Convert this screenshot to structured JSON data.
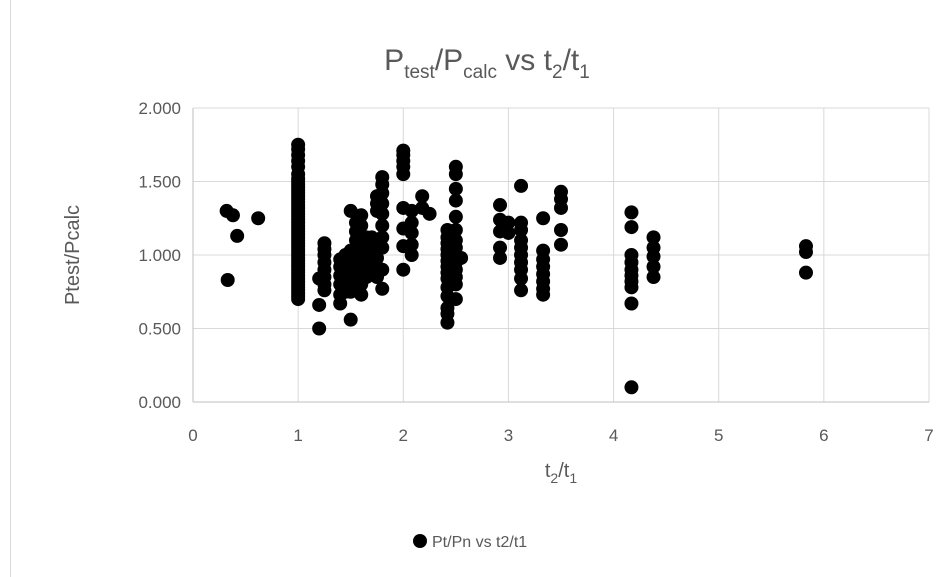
{
  "chart_data": {
    "type": "scatter",
    "title": {
      "main": "P",
      "sub1": "test",
      "mid": "/P",
      "sub2": "calc",
      "rest": " vs t",
      "sub3": "2",
      "slash": "/t",
      "sub4": "1"
    },
    "xlabel": {
      "main": "t",
      "sub1": "2",
      "mid": "/t",
      "sub2": "1"
    },
    "ylabel": "Ptest/Pcalc",
    "xlim": [
      0,
      7
    ],
    "ylim": [
      0,
      2
    ],
    "x_ticks": [
      "0",
      "1",
      "2",
      "3",
      "4",
      "5",
      "6",
      "7"
    ],
    "y_ticks": [
      "0.000",
      "0.500",
      "1.000",
      "1.500",
      "2.000"
    ],
    "grid": true,
    "legend_position": "bottom",
    "series": [
      {
        "name": "Pt/Pn vs t2/t1",
        "color": "#000000",
        "points": [
          [
            0.32,
            1.3
          ],
          [
            0.33,
            0.83
          ],
          [
            0.38,
            1.27
          ],
          [
            0.42,
            1.13
          ],
          [
            0.62,
            1.25
          ],
          [
            1.0,
            0.7
          ],
          [
            1.0,
            0.72
          ],
          [
            1.0,
            0.74
          ],
          [
            1.0,
            0.76
          ],
          [
            1.0,
            0.78
          ],
          [
            1.0,
            0.8
          ],
          [
            1.0,
            0.82
          ],
          [
            1.0,
            0.84
          ],
          [
            1.0,
            0.86
          ],
          [
            1.0,
            0.88
          ],
          [
            1.0,
            0.9
          ],
          [
            1.0,
            0.92
          ],
          [
            1.0,
            0.94
          ],
          [
            1.0,
            0.96
          ],
          [
            1.0,
            0.98
          ],
          [
            1.0,
            1.0
          ],
          [
            1.0,
            1.02
          ],
          [
            1.0,
            1.04
          ],
          [
            1.0,
            1.06
          ],
          [
            1.0,
            1.08
          ],
          [
            1.0,
            1.1
          ],
          [
            1.0,
            1.12
          ],
          [
            1.0,
            1.14
          ],
          [
            1.0,
            1.16
          ],
          [
            1.0,
            1.18
          ],
          [
            1.0,
            1.2
          ],
          [
            1.0,
            1.22
          ],
          [
            1.0,
            1.24
          ],
          [
            1.0,
            1.26
          ],
          [
            1.0,
            1.28
          ],
          [
            1.0,
            1.3
          ],
          [
            1.0,
            1.32
          ],
          [
            1.0,
            1.34
          ],
          [
            1.0,
            1.36
          ],
          [
            1.0,
            1.38
          ],
          [
            1.0,
            1.4
          ],
          [
            1.0,
            1.42
          ],
          [
            1.0,
            1.44
          ],
          [
            1.0,
            1.46
          ],
          [
            1.0,
            1.48
          ],
          [
            1.0,
            1.5
          ],
          [
            1.0,
            1.52
          ],
          [
            1.0,
            1.55
          ],
          [
            1.0,
            1.6
          ],
          [
            1.0,
            1.64
          ],
          [
            1.0,
            1.68
          ],
          [
            1.0,
            1.72
          ],
          [
            1.0,
            1.75
          ],
          [
            1.2,
            0.5
          ],
          [
            1.2,
            0.66
          ],
          [
            1.2,
            0.84
          ],
          [
            1.25,
            0.76
          ],
          [
            1.25,
            0.8
          ],
          [
            1.25,
            0.85
          ],
          [
            1.25,
            0.9
          ],
          [
            1.25,
            0.95
          ],
          [
            1.25,
            1.0
          ],
          [
            1.25,
            1.04
          ],
          [
            1.25,
            1.08
          ],
          [
            1.4,
            0.67
          ],
          [
            1.4,
            0.73
          ],
          [
            1.4,
            0.8
          ],
          [
            1.4,
            0.86
          ],
          [
            1.4,
            0.92
          ],
          [
            1.4,
            0.97
          ],
          [
            1.45,
            0.75
          ],
          [
            1.45,
            0.85
          ],
          [
            1.45,
            0.95
          ],
          [
            1.45,
            1.0
          ],
          [
            1.5,
            0.56
          ],
          [
            1.5,
            0.75
          ],
          [
            1.5,
            0.82
          ],
          [
            1.5,
            0.88
          ],
          [
            1.5,
            0.93
          ],
          [
            1.5,
            0.98
          ],
          [
            1.5,
            1.03
          ],
          [
            1.5,
            1.3
          ],
          [
            1.55,
            0.8
          ],
          [
            1.55,
            0.86
          ],
          [
            1.55,
            0.92
          ],
          [
            1.55,
            0.98
          ],
          [
            1.55,
            1.04
          ],
          [
            1.55,
            1.1
          ],
          [
            1.55,
            1.16
          ],
          [
            1.55,
            1.22
          ],
          [
            1.6,
            0.73
          ],
          [
            1.6,
            0.8
          ],
          [
            1.6,
            0.88
          ],
          [
            1.6,
            0.95
          ],
          [
            1.6,
            1.02
          ],
          [
            1.6,
            1.1
          ],
          [
            1.6,
            1.2
          ],
          [
            1.6,
            1.27
          ],
          [
            1.65,
            0.85
          ],
          [
            1.65,
            0.92
          ],
          [
            1.65,
            0.98
          ],
          [
            1.65,
            1.05
          ],
          [
            1.65,
            1.12
          ],
          [
            1.7,
            0.88
          ],
          [
            1.7,
            0.95
          ],
          [
            1.7,
            1.0
          ],
          [
            1.7,
            1.06
          ],
          [
            1.7,
            1.12
          ],
          [
            1.75,
            0.85
          ],
          [
            1.75,
            0.92
          ],
          [
            1.75,
            0.98
          ],
          [
            1.75,
            1.05
          ],
          [
            1.75,
            1.3
          ],
          [
            1.75,
            1.35
          ],
          [
            1.75,
            1.4
          ],
          [
            1.8,
            0.77
          ],
          [
            1.8,
            0.9
          ],
          [
            1.8,
            1.05
          ],
          [
            1.8,
            1.12
          ],
          [
            1.8,
            1.2
          ],
          [
            1.8,
            1.28
          ],
          [
            1.8,
            1.35
          ],
          [
            1.8,
            1.42
          ],
          [
            1.8,
            1.48
          ],
          [
            1.8,
            1.53
          ],
          [
            2.0,
            0.9
          ],
          [
            2.0,
            1.06
          ],
          [
            2.0,
            1.18
          ],
          [
            2.0,
            1.32
          ],
          [
            2.0,
            1.55
          ],
          [
            2.0,
            1.6
          ],
          [
            2.0,
            1.64
          ],
          [
            2.0,
            1.68
          ],
          [
            2.0,
            1.71
          ],
          [
            2.08,
            1.0
          ],
          [
            2.08,
            1.07
          ],
          [
            2.08,
            1.15
          ],
          [
            2.08,
            1.22
          ],
          [
            2.08,
            1.3
          ],
          [
            2.18,
            1.32
          ],
          [
            2.18,
            1.4
          ],
          [
            2.25,
            1.28
          ],
          [
            2.42,
            0.54
          ],
          [
            2.42,
            0.6
          ],
          [
            2.42,
            0.64
          ],
          [
            2.42,
            0.72
          ],
          [
            2.42,
            0.78
          ],
          [
            2.42,
            0.84
          ],
          [
            2.42,
            0.88
          ],
          [
            2.42,
            0.92
          ],
          [
            2.42,
            0.96
          ],
          [
            2.42,
            1.0
          ],
          [
            2.42,
            1.04
          ],
          [
            2.42,
            1.08
          ],
          [
            2.42,
            1.12
          ],
          [
            2.42,
            1.17
          ],
          [
            2.5,
            0.7
          ],
          [
            2.5,
            0.8
          ],
          [
            2.5,
            0.85
          ],
          [
            2.5,
            0.9
          ],
          [
            2.5,
            0.95
          ],
          [
            2.5,
            1.0
          ],
          [
            2.5,
            1.05
          ],
          [
            2.5,
            1.1
          ],
          [
            2.5,
            1.17
          ],
          [
            2.5,
            1.26
          ],
          [
            2.5,
            1.37
          ],
          [
            2.5,
            1.45
          ],
          [
            2.5,
            1.55
          ],
          [
            2.5,
            1.6
          ],
          [
            2.55,
            0.98
          ],
          [
            2.92,
            0.98
          ],
          [
            2.92,
            1.05
          ],
          [
            2.92,
            1.16
          ],
          [
            2.92,
            1.24
          ],
          [
            2.92,
            1.34
          ],
          [
            3.0,
            1.15
          ],
          [
            3.0,
            1.22
          ],
          [
            3.12,
            0.76
          ],
          [
            3.12,
            0.84
          ],
          [
            3.12,
            0.9
          ],
          [
            3.12,
            0.95
          ],
          [
            3.12,
            1.0
          ],
          [
            3.12,
            1.05
          ],
          [
            3.12,
            1.1
          ],
          [
            3.12,
            1.17
          ],
          [
            3.12,
            1.22
          ],
          [
            3.12,
            1.47
          ],
          [
            3.33,
            0.73
          ],
          [
            3.33,
            0.77
          ],
          [
            3.33,
            0.82
          ],
          [
            3.33,
            0.87
          ],
          [
            3.33,
            0.92
          ],
          [
            3.33,
            0.97
          ],
          [
            3.33,
            1.03
          ],
          [
            3.33,
            1.25
          ],
          [
            3.5,
            1.07
          ],
          [
            3.5,
            1.17
          ],
          [
            3.5,
            1.32
          ],
          [
            3.5,
            1.38
          ],
          [
            3.5,
            1.43
          ],
          [
            4.17,
            0.1
          ],
          [
            4.17,
            0.67
          ],
          [
            4.17,
            0.78
          ],
          [
            4.17,
            0.82
          ],
          [
            4.17,
            0.86
          ],
          [
            4.17,
            0.9
          ],
          [
            4.17,
            0.95
          ],
          [
            4.17,
            1.0
          ],
          [
            4.17,
            1.19
          ],
          [
            4.17,
            1.29
          ],
          [
            4.38,
            0.85
          ],
          [
            4.38,
            0.92
          ],
          [
            4.38,
            0.99
          ],
          [
            4.38,
            1.05
          ],
          [
            4.38,
            1.12
          ],
          [
            5.83,
            0.88
          ],
          [
            5.83,
            1.02
          ],
          [
            5.83,
            1.06
          ]
        ]
      }
    ]
  }
}
